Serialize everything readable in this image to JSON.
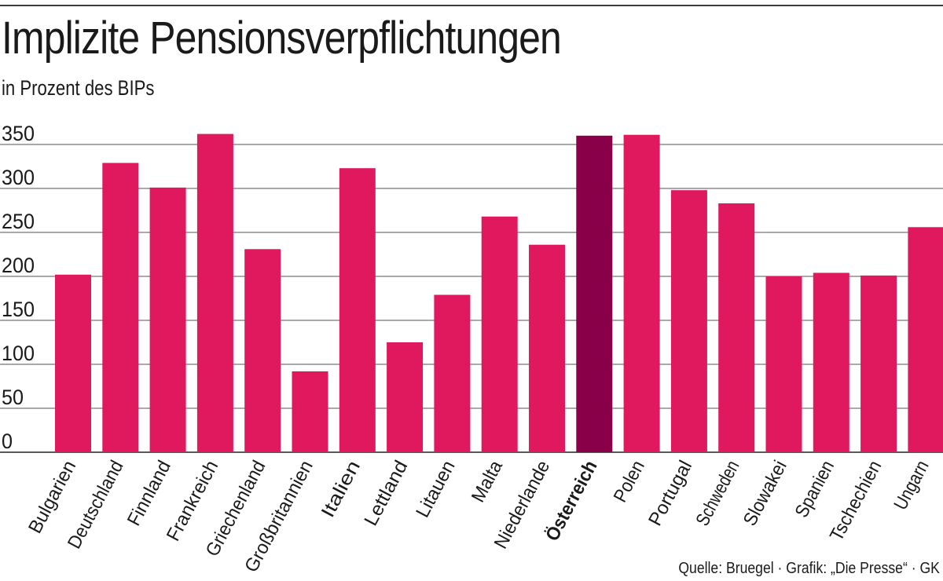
{
  "chart_data": {
    "type": "bar",
    "title": "Implizite Pensionsverpflichtungen",
    "subtitle": "in Prozent des BIPs",
    "source": "Quelle: Bruegel · Grafik: „Die Presse“ · GK",
    "categories": [
      "Bulgarien",
      "Deutschland",
      "Finnland",
      "Frankreich",
      "Griechenland",
      "Großbritannien",
      "Italien",
      "Lettland",
      "Litauen",
      "Malta",
      "Niederlande",
      "Österreich",
      "Polen",
      "Portugal",
      "Schweden",
      "Slowakei",
      "Spanien",
      "Tschechien",
      "Ungarn"
    ],
    "values": [
      202,
      329,
      301,
      362,
      231,
      92,
      323,
      125,
      179,
      268,
      236,
      360,
      361,
      298,
      283,
      200,
      204,
      201,
      256
    ],
    "highlight": "Österreich",
    "yticks": [
      0,
      50,
      100,
      150,
      200,
      250,
      300,
      350
    ],
    "ylim": [
      0,
      350
    ],
    "grid": true,
    "colors": {
      "bar": "#e0185e",
      "highlight": "#8a0048",
      "grid": "#555555"
    }
  }
}
